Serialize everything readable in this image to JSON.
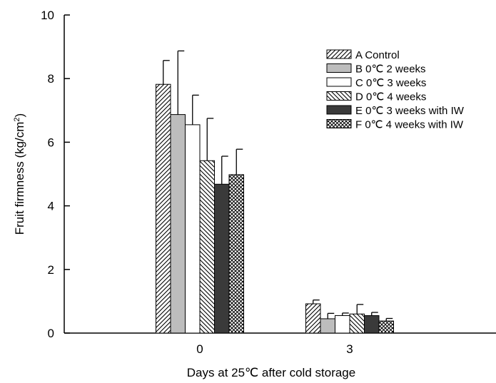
{
  "chart_data": {
    "type": "bar",
    "xlabel": "Days at 25℃  after cold storage",
    "ylabel": "Fruit firmness (kg/cm",
    "ylabel_superscript": "2",
    "ylabel_suffix": ")",
    "ylim": [
      0,
      10
    ],
    "yticks": [
      "0",
      "2",
      "4",
      "6",
      "8",
      "10"
    ],
    "categories": [
      "0",
      "3"
    ],
    "legend_position": "top-right",
    "grid": false,
    "series": [
      {
        "name": "A  Control",
        "pattern": "diag-right",
        "values": [
          7.82,
          0.92
        ],
        "errors": [
          0.75,
          0.12
        ]
      },
      {
        "name": "B  0℃  2 weeks",
        "pattern": "gray",
        "values": [
          6.87,
          0.45
        ],
        "errors": [
          2.0,
          0.17
        ]
      },
      {
        "name": "C  0℃  3 weeks",
        "pattern": "white",
        "values": [
          6.55,
          0.55
        ],
        "errors": [
          0.93,
          0.08
        ]
      },
      {
        "name": "D  0℃  4 weeks",
        "pattern": "diag-left",
        "values": [
          5.42,
          0.6
        ],
        "errors": [
          1.33,
          0.3
        ]
      },
      {
        "name": "E  0℃  3 weeks with IW",
        "pattern": "dark",
        "values": [
          4.68,
          0.55
        ],
        "errors": [
          0.88,
          0.1
        ]
      },
      {
        "name": "F  0℃  4 weeks with IW",
        "pattern": "cross",
        "values": [
          4.98,
          0.38
        ],
        "errors": [
          0.8,
          0.08
        ]
      }
    ]
  }
}
